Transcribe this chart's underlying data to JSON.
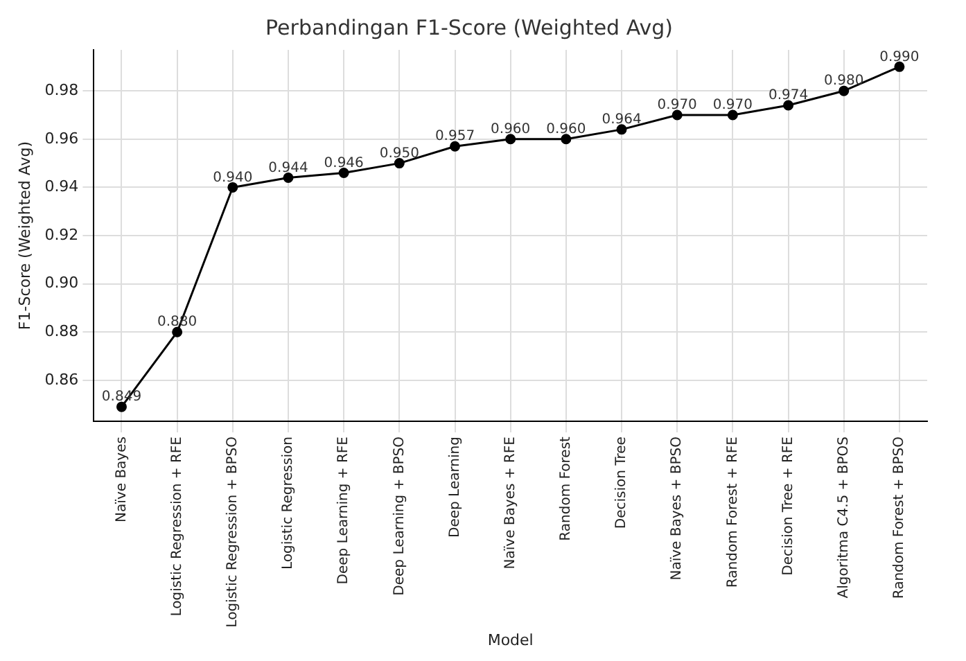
{
  "chart_data": {
    "type": "line",
    "title": "Perbandingan F1-Score (Weighted Avg)",
    "xlabel": "Model",
    "ylabel": "F1-Score (Weighted Avg)",
    "categories": [
      "Naïve Bayes",
      "Logistic Regression + RFE",
      "Logistic Regression + BPSO",
      "Logistic Regression",
      "Deep Learning + RFE",
      "Deep Learning + BPSO",
      "Deep Learning",
      "Naïve Bayes + RFE",
      "Random Forest",
      "Decision Tree",
      "Naïve Bayes + BPSO",
      "Random Forest + RFE",
      "Decision Tree + RFE",
      "Algoritma C4.5 + BPOS",
      "Random Forest + BPSO"
    ],
    "values": [
      0.849,
      0.88,
      0.94,
      0.944,
      0.946,
      0.95,
      0.957,
      0.96,
      0.96,
      0.964,
      0.97,
      0.97,
      0.974,
      0.98,
      0.99
    ],
    "value_labels": [
      "0.849",
      "0.880",
      "0.940",
      "0.944",
      "0.946",
      "0.950",
      "0.957",
      "0.960",
      "0.960",
      "0.964",
      "0.970",
      "0.970",
      "0.974",
      "0.980",
      "0.990"
    ],
    "color": "#000000",
    "marker": "circle",
    "line_style": "solid",
    "grid": true,
    "ylim": [
      0.843,
      0.997
    ],
    "yticks": [
      {
        "value": 0.86,
        "label": "0.86"
      },
      {
        "value": 0.88,
        "label": "0.88"
      },
      {
        "value": 0.9,
        "label": "0.90"
      },
      {
        "value": 0.92,
        "label": "0.92"
      },
      {
        "value": 0.94,
        "label": "0.94"
      },
      {
        "value": 0.96,
        "label": "0.96"
      },
      {
        "value": 0.98,
        "label": "0.98"
      }
    ]
  }
}
